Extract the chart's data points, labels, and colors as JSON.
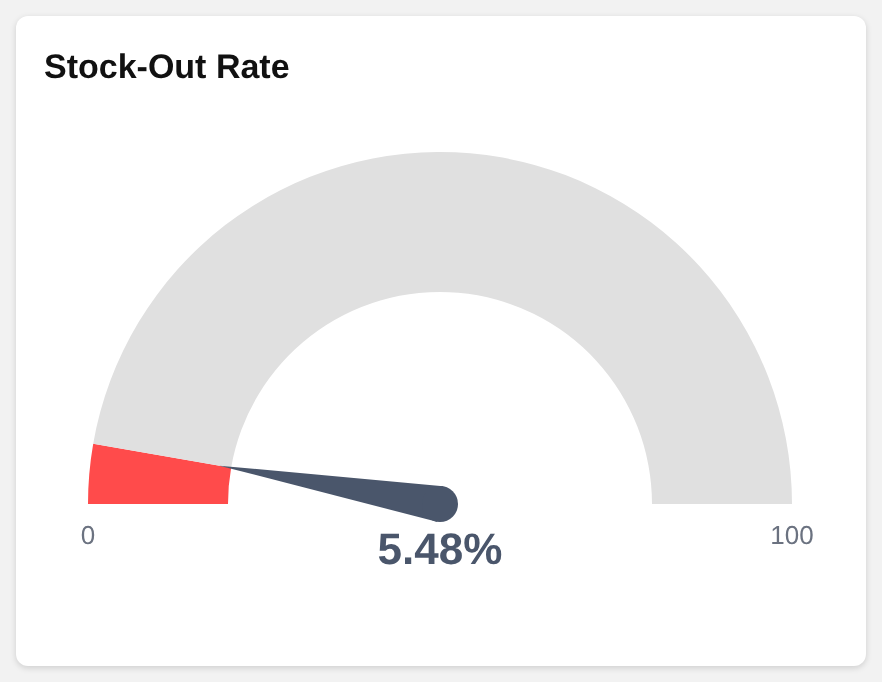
{
  "chart_data": {
    "type": "donut",
    "title": "Stock-Out Rate",
    "categories": [
      null,
      null
    ],
    "values": [
      5.48,
      94.52
    ],
    "colors": [
      "#ff4b4b",
      "#e0e0e0"
    ],
    "annotations": [
      "5.48%",
      "0",
      "100"
    ]
  }
}
